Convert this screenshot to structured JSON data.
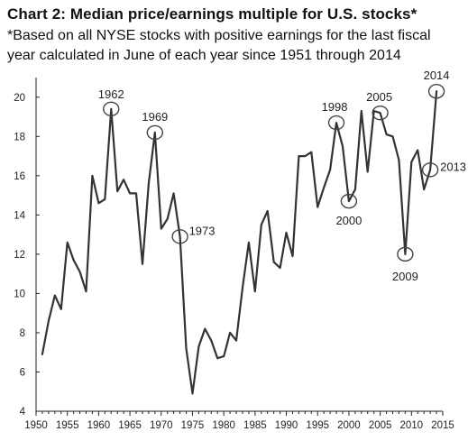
{
  "chart_data": {
    "type": "line",
    "title": "Chart 2: Median price/earnings multiple for U.S. stocks*",
    "subtitle": "*Based on all NYSE stocks with positive earnings for the last fiscal year calculated in June of each year since 1951 through 2014",
    "xlabel": "",
    "ylabel": "",
    "xlim": [
      1950,
      2015
    ],
    "ylim": [
      4,
      21
    ],
    "grid": false,
    "x_ticks": [
      "1950",
      "1955",
      "1960",
      "1965",
      "1970",
      "1975",
      "1980",
      "1985",
      "1990",
      "1995",
      "2000",
      "2005",
      "2010",
      "2015"
    ],
    "y_ticks": [
      "4",
      "6",
      "8",
      "10",
      "12",
      "14",
      "16",
      "18",
      "20"
    ],
    "series": [
      {
        "color": "#333333",
        "x": [
          1951,
          1952,
          1953,
          1954,
          1955,
          1956,
          1957,
          1958,
          1959,
          1960,
          1961,
          1962,
          1963,
          1964,
          1965,
          1966,
          1967,
          1968,
          1969,
          1970,
          1971,
          1972,
          1973,
          1974,
          1975,
          1976,
          1977,
          1978,
          1979,
          1980,
          1981,
          1982,
          1983,
          1984,
          1985,
          1986,
          1987,
          1988,
          1989,
          1990,
          1991,
          1992,
          1993,
          1994,
          1995,
          1996,
          1997,
          1998,
          1999,
          2000,
          2001,
          2002,
          2003,
          2004,
          2005,
          2006,
          2007,
          2008,
          2009,
          2010,
          2011,
          2012,
          2013,
          2014
        ],
        "y": [
          6.9,
          8.6,
          9.9,
          9.2,
          12.6,
          11.7,
          11.1,
          10.1,
          16.0,
          14.6,
          14.8,
          19.4,
          15.2,
          15.8,
          15.1,
          15.1,
          11.5,
          15.6,
          18.2,
          13.3,
          13.8,
          15.1,
          12.9,
          7.2,
          4.9,
          7.3,
          8.2,
          7.6,
          6.7,
          6.8,
          8.0,
          7.6,
          10.3,
          12.6,
          10.1,
          13.5,
          14.2,
          11.6,
          11.3,
          13.1,
          11.9,
          17.0,
          17.0,
          17.2,
          14.4,
          15.4,
          16.3,
          18.7,
          17.5,
          14.7,
          15.3,
          19.3,
          16.2,
          19.3,
          19.2,
          18.1,
          18.0,
          16.8,
          12.0,
          16.7,
          17.3,
          15.3,
          16.3,
          20.3
        ]
      }
    ],
    "annotations": [
      {
        "label": "1962",
        "x": 1962,
        "y": 19.4
      },
      {
        "label": "1969",
        "x": 1969,
        "y": 18.2
      },
      {
        "label": "1973",
        "x": 1973,
        "y": 12.9
      },
      {
        "label": "1998",
        "x": 1998,
        "y": 18.7
      },
      {
        "label": "2000",
        "x": 2000,
        "y": 14.7
      },
      {
        "label": "2005",
        "x": 2005,
        "y": 19.2
      },
      {
        "label": "2009",
        "x": 2009,
        "y": 12.0
      },
      {
        "label": "2013",
        "x": 2013,
        "y": 16.3
      },
      {
        "label": "2014",
        "x": 2014,
        "y": 20.3
      }
    ]
  }
}
